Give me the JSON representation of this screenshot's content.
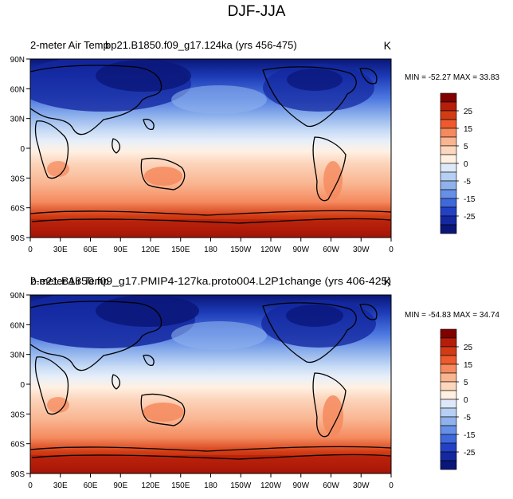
{
  "figure_title": "DJF-JJA",
  "panels": [
    {
      "title_left_1": "2-meter Air Temp",
      "title_left_2": "bp21.B1850.f09_g17.124ka (yrs 456-475)",
      "units": "K",
      "stats": "MIN = -52.27 MAX =  33.83"
    },
    {
      "title_left_1": "2-meter Air Temp",
      "title_left_2": "b.e21.B1850.f09_g17.PMIP4-127ka.proto004.L2P1change (yrs 406-425)",
      "units": "K",
      "stats": "MIN = -54.83 MAX =  34.74"
    }
  ],
  "axes": {
    "lat_ticks": [
      "90N",
      "60N",
      "30N",
      "0",
      "30S",
      "60S",
      "90S"
    ],
    "lon_ticks": [
      "0",
      "30E",
      "60E",
      "90E",
      "120E",
      "150E",
      "180",
      "150W",
      "120W",
      "90W",
      "60W",
      "30W",
      "0"
    ]
  },
  "colorbar": {
    "labels": [
      "25",
      "15",
      "5",
      "0",
      "-5",
      "-15",
      "-25"
    ],
    "colors": [
      "#800000",
      "#b41e0a",
      "#d23c14",
      "#ec5a2d",
      "#f58a5e",
      "#f9b490",
      "#fcd6bd",
      "#fff0e2",
      "#dde8f8",
      "#b7cff2",
      "#8fb2ec",
      "#6690e6",
      "#3f68dc",
      "#2341c4",
      "#1428a0",
      "#0a1678"
    ]
  },
  "chart_data": {
    "type": "map",
    "title": "DJF-JJA",
    "variable": "2-meter Air Temp",
    "units": "K",
    "panels": [
      {
        "case": "bp21.B1850.f09_g17.124ka (yrs 456-475)",
        "min": -52.27,
        "max": 33.83
      },
      {
        "case": "b.e21.B1850.f09_g17.PMIP4-127ka.proto004.L2P1change (yrs 406-425)",
        "min": -54.83,
        "max": 34.74
      }
    ],
    "colorbar_ticks": [
      25,
      15,
      5,
      0,
      -5,
      -15,
      -25
    ]
  }
}
